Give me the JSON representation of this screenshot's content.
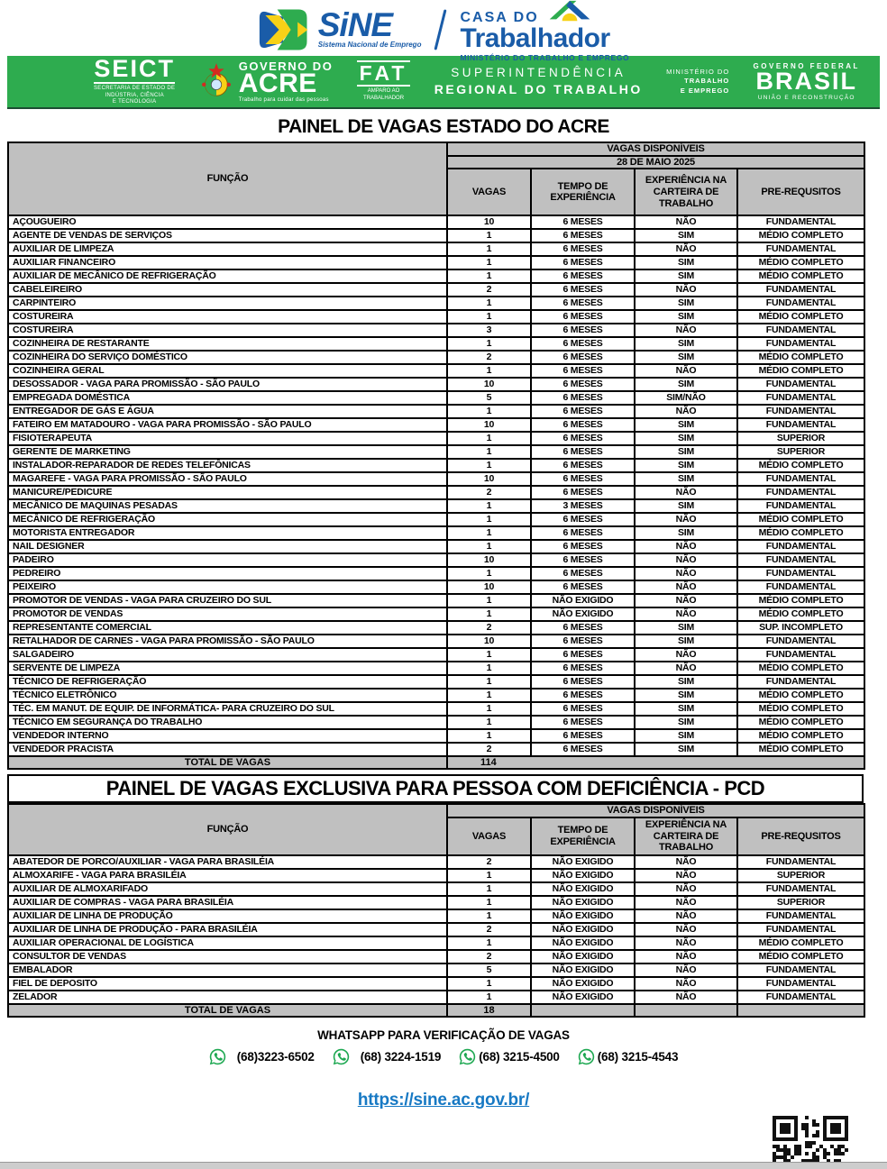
{
  "header": {
    "sine": {
      "name": "SiNE",
      "tagline": "Sistema Nacional de Emprego"
    },
    "casa": {
      "line1": "CASA DO",
      "line2": "Trabalhador",
      "tagline": "MINISTÉRIO DO TRABALHO E EMPREGO"
    },
    "banner": {
      "seict": {
        "title": "SEICT",
        "subtitle": "SECRETARIA DE ESTADO DE\nINDÚSTRIA, CIÊNCIA\nE TECNOLOGIA"
      },
      "governo_acre": {
        "line1": "GOVERNO DO",
        "line2": "ACRE",
        "tagline": "Trabalho para cuidar das pessoas"
      },
      "fat": {
        "title": "FAT",
        "subtitle": "AMPARO AO\nTRABALHADOR"
      },
      "superintendencia": {
        "line1": "SUPERINTENDÊNCIA",
        "line2": "REGIONAL DO TRABALHO"
      },
      "ministerio": {
        "line1": "MINISTÉRIO DO",
        "line2": "TRABALHO",
        "line3": "E EMPREGO"
      },
      "brasil": {
        "line1": "GOVERNO FEDERAL",
        "line2": "BRASIL",
        "line3": "UNIÃO E RECONSTRUÇÃO"
      }
    }
  },
  "main_table": {
    "title": "PAINEL DE VAGAS ESTADO DO ACRE",
    "group_header": "VAGAS DISPONÍVEIS",
    "date": "28 DE MAIO 2025",
    "columns": [
      "FUNÇÃO",
      "VAGAS",
      "TEMPO DE EXPERIÊNCIA",
      "EXPERIÊNCIA NA CARTEIRA DE TRABALHO",
      "PRE-REQUSITOS"
    ],
    "rows": [
      [
        "AÇOUGUEIRO",
        "10",
        "6 MESES",
        "NÃO",
        "FUNDAMENTAL"
      ],
      [
        "AGENTE DE VENDAS DE SERVIÇOS",
        "1",
        "6 MESES",
        "SIM",
        "MÉDIO COMPLETO"
      ],
      [
        "AUXILIAR DE LIMPEZA",
        "1",
        "6 MESES",
        "NÃO",
        "FUNDAMENTAL"
      ],
      [
        "AUXILIAR FINANCEIRO",
        "1",
        "6 MESES",
        "SIM",
        "MÉDIO COMPLETO"
      ],
      [
        "AUXILIAR DE MECÂNICO DE REFRIGERAÇÃO",
        "1",
        "6 MESES",
        "SIM",
        "MÉDIO COMPLETO"
      ],
      [
        "CABELEIREIRO",
        "2",
        "6 MESES",
        "NÃO",
        "FUNDAMENTAL"
      ],
      [
        "CARPINTEIRO",
        "1",
        "6 MESES",
        "SIM",
        "FUNDAMENTAL"
      ],
      [
        "COSTUREIRA",
        "1",
        "6 MESES",
        "SIM",
        "MÉDIO COMPLETO"
      ],
      [
        "COSTUREIRA",
        "3",
        "6 MESES",
        "NÃO",
        "FUNDAMENTAL"
      ],
      [
        "COZINHEIRA DE RESTARANTE",
        "1",
        "6 MESES",
        "SIM",
        "FUNDAMENTAL"
      ],
      [
        "COZINHEIRA DO SERVIÇO DOMÉSTICO",
        "2",
        "6 MESES",
        "SIM",
        "MÉDIO COMPLETO"
      ],
      [
        "COZINHEIRA GERAL",
        "1",
        "6 MESES",
        "NÃO",
        "MÉDIO COMPLETO"
      ],
      [
        "DESOSSADOR - VAGA PARA PROMISSÃO - SÃO PAULO",
        "10",
        "6 MESES",
        "SIM",
        "FUNDAMENTAL"
      ],
      [
        "EMPREGADA DOMÉSTICA",
        "5",
        "6 MESES",
        "SIM/NÃO",
        "FUNDAMENTAL"
      ],
      [
        "ENTREGADOR DE GÁS E ÁGUA",
        "1",
        "6 MESES",
        "NÃO",
        "FUNDAMENTAL"
      ],
      [
        "FATEIRO EM MATADOURO - VAGA PARA PROMISSÃO - SÃO PAULO",
        "10",
        "6 MESES",
        "SIM",
        "FUNDAMENTAL"
      ],
      [
        "FISIOTERAPEUTA",
        "1",
        "6 MESES",
        "SIM",
        "SUPERIOR"
      ],
      [
        "GERENTE DE MARKETING",
        "1",
        "6 MESES",
        "SIM",
        "SUPERIOR"
      ],
      [
        "INSTALADOR-REPARADOR DE REDES TELEFÔNICAS",
        "1",
        "6 MESES",
        "SIM",
        "MÉDIO COMPLETO"
      ],
      [
        "MAGAREFE - VAGA PARA PROMISSÃO - SÃO PAULO",
        "10",
        "6 MESES",
        "SIM",
        "FUNDAMENTAL"
      ],
      [
        "MANICURE/PEDICURE",
        "2",
        "6 MESES",
        "NÃO",
        "FUNDAMENTAL"
      ],
      [
        "MECÂNICO DE MAQUINAS PESADAS",
        "1",
        "3 MESES",
        "SIM",
        "FUNDAMENTAL"
      ],
      [
        "MECÂNICO DE REFRIGERAÇÃO",
        "1",
        "6 MESES",
        "NÃO",
        "MÉDIO COMPLETO"
      ],
      [
        "MOTORISTA ENTREGADOR",
        "1",
        "6 MESES",
        "SIM",
        "MÉDIO COMPLETO"
      ],
      [
        "NAIL DESIGNER",
        "1",
        "6 MESES",
        "NÃO",
        "FUNDAMENTAL"
      ],
      [
        "PADEIRO",
        "10",
        "6 MESES",
        "NÃO",
        "FUNDAMENTAL"
      ],
      [
        "PEDREIRO",
        "1",
        "6 MESES",
        "NÃO",
        "FUNDAMENTAL"
      ],
      [
        "PEIXEIRO",
        "10",
        "6 MESES",
        "NÃO",
        "FUNDAMENTAL"
      ],
      [
        "PROMOTOR DE VENDAS - VAGA PARA CRUZEIRO DO SUL",
        "1",
        "NÃO EXIGIDO",
        "NÃO",
        "MÉDIO COMPLETO"
      ],
      [
        "PROMOTOR DE VENDAS",
        "1",
        "NÃO EXIGIDO",
        "NÃO",
        "MÉDIO COMPLETO"
      ],
      [
        "REPRESENTANTE COMERCIAL",
        "2",
        "6 MESES",
        "SIM",
        "SUP. INCOMPLETO"
      ],
      [
        "RETALHADOR DE CARNES - VAGA PARA PROMISSÃO - SÃO PAULO",
        "10",
        "6 MESES",
        "SIM",
        "FUNDAMENTAL"
      ],
      [
        "SALGADEIRO",
        "1",
        "6 MESES",
        "NÃO",
        "FUNDAMENTAL"
      ],
      [
        "SERVENTE DE LIMPEZA",
        "1",
        "6 MESES",
        "NÃO",
        "MÉDIO COMPLETO"
      ],
      [
        "TÉCNICO DE REFRIGERAÇÃO",
        "1",
        "6 MESES",
        "SIM",
        "FUNDAMENTAL"
      ],
      [
        "TÉCNICO ELETRÔNICO",
        "1",
        "6 MESES",
        "SIM",
        "MÉDIO COMPLETO"
      ],
      [
        "TÉC. EM MANUT. DE EQUIP. DE INFORMÁTICA- PARA CRUZEIRO DO SUL",
        "1",
        "6 MESES",
        "SIM",
        "MÉDIO COMPLETO"
      ],
      [
        "TÉCNICO EM SEGURANÇA DO TRABALHO",
        "1",
        "6 MESES",
        "SIM",
        "MÉDIO COMPLETO"
      ],
      [
        "VENDEDOR INTERNO",
        "1",
        "6 MESES",
        "SIM",
        "MÉDIO COMPLETO"
      ],
      [
        "VENDEDOR PRACISTA",
        "2",
        "6 MESES",
        "SIM",
        "MÉDIO COMPLETO"
      ]
    ],
    "total_label": "TOTAL DE VAGAS",
    "total": "114"
  },
  "pcd_table": {
    "title": "PAINEL DE VAGAS EXCLUSIVA PARA PESSOA COM DEFICIÊNCIA - PCD",
    "group_header": "VAGAS DISPONÍVEIS",
    "columns": [
      "FUNÇÃO",
      "VAGAS",
      "TEMPO DE EXPERIÊNCIA",
      "EXPERIÊNCIA NA CARTEIRA DE TRABALHO",
      "PRE-REQUSITOS"
    ],
    "rows": [
      [
        "ABATEDOR DE PORCO/AUXILIAR - VAGA PARA BRASILÉIA",
        "2",
        "NÃO EXIGIDO",
        "NÃO",
        "FUNDAMENTAL"
      ],
      [
        "ALMOXARIFE - VAGA PARA BRASILÉIA",
        "1",
        "NÃO EXIGIDO",
        "NÃO",
        "SUPERIOR"
      ],
      [
        "AUXILIAR DE ALMOXARIFADO",
        "1",
        "NÃO EXIGIDO",
        "NÃO",
        "FUNDAMENTAL"
      ],
      [
        "AUXILIAR DE COMPRAS - VAGA PARA BRASILÉIA",
        "1",
        "NÃO EXIGIDO",
        "NÃO",
        "SUPERIOR"
      ],
      [
        "AUXILIAR DE LINHA DE PRODUÇÃO",
        "1",
        "NÃO EXIGIDO",
        "NÃO",
        "FUNDAMENTAL"
      ],
      [
        "AUXILIAR DE LINHA DE PRODUÇÃO - PARA BRASILÉIA",
        "2",
        "NÃO EXIGIDO",
        "NÃO",
        "FUNDAMENTAL"
      ],
      [
        "AUXILIAR OPERACIONAL DE LOGÍSTICA",
        "1",
        "NÃO EXIGIDO",
        "NÃO",
        "MÉDIO COMPLETO"
      ],
      [
        "CONSULTOR DE VENDAS",
        "2",
        "NÃO EXIGIDO",
        "NÃO",
        "MÉDIO COMPLETO"
      ],
      [
        "EMBALADOR",
        "5",
        "NÃO EXIGIDO",
        "NÃO",
        "FUNDAMENTAL"
      ],
      [
        "FIEL DE DEPOSITO",
        "1",
        "NÃO EXIGIDO",
        "NÃO",
        "FUNDAMENTAL"
      ],
      [
        "ZELADOR",
        "1",
        "NÃO EXIGIDO",
        "NÃO",
        "FUNDAMENTAL"
      ]
    ],
    "total_label": "TOTAL DE VAGAS",
    "total": "18"
  },
  "footer": {
    "whatsapp_title": "WHATSAPP PARA VERIFICAÇÃO DE VAGAS",
    "phones": [
      "(68)3223-6502",
      "(68) 3224-1519",
      "(68) 3215-4500",
      "(68) 3215-4543"
    ],
    "link": "https://sine.ac.gov.br/"
  },
  "colors": {
    "banner_green": "#2EAC4F",
    "logo_blue": "#1A5CA8",
    "header_gray": "#C0C0C0",
    "link_blue": "#1779C4",
    "whatsapp_green": "#1DA851",
    "accent_yellow": "#F7D117",
    "accent_red": "#D42A20"
  }
}
